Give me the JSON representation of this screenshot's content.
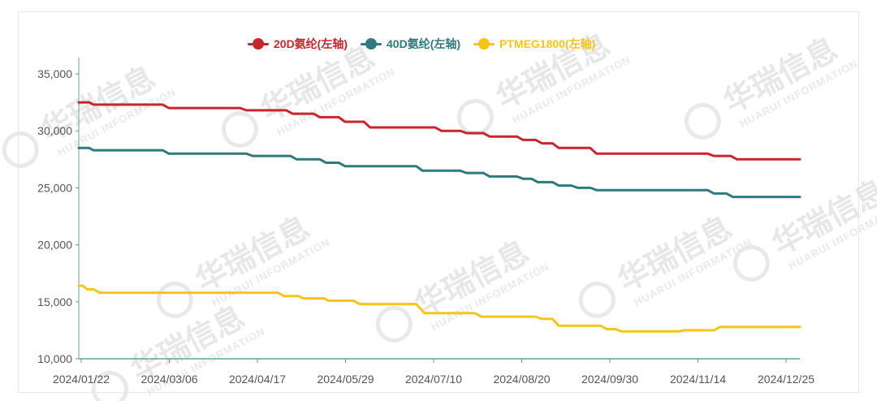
{
  "watermark": {
    "cn": "华瑞信息",
    "en": "HUARUI INFORMATION"
  },
  "legend": [
    {
      "label": "20D氨纶(左轴)",
      "color": "#c8252d"
    },
    {
      "label": "40D氨纶(左轴)",
      "color": "#2e7a7c"
    },
    {
      "label": "PTMEG1800(左轴)",
      "color": "#f5c518"
    }
  ],
  "chart_data": {
    "type": "line",
    "title": "",
    "xlabel": "",
    "ylabel": "",
    "ylim": [
      10000,
      35000
    ],
    "yticks": [
      10000,
      15000,
      20000,
      25000,
      30000,
      35000
    ],
    "ytick_labels": [
      "10,000",
      "15,000",
      "20,000",
      "25,000",
      "30,000",
      "35,000"
    ],
    "xlim": [
      "2024/01/22",
      "2024/12/31"
    ],
    "xtick_labels": [
      "2024/01/22",
      "2024/03/06",
      "2024/04/17",
      "2024/05/29",
      "2024/07/10",
      "2024/08/20",
      "2024/09/30",
      "2024/11/14",
      "2024/12/25"
    ],
    "grid": false,
    "legend_position": "top-center",
    "series": [
      {
        "name": "20D氨纶(左轴)",
        "color": "#c8252d",
        "points": [
          [
            "2024/01/22",
            32500
          ],
          [
            "2024/01/27",
            32500
          ],
          [
            "2024/01/29",
            32300
          ],
          [
            "2024/03/02",
            32300
          ],
          [
            "2024/03/05",
            32000
          ],
          [
            "2024/04/08",
            32000
          ],
          [
            "2024/04/11",
            31800
          ],
          [
            "2024/04/30",
            31800
          ],
          [
            "2024/05/03",
            31500
          ],
          [
            "2024/05/13",
            31500
          ],
          [
            "2024/05/16",
            31200
          ],
          [
            "2024/05/25",
            31200
          ],
          [
            "2024/05/28",
            30800
          ],
          [
            "2024/06/06",
            30800
          ],
          [
            "2024/06/09",
            30300
          ],
          [
            "2024/07/10",
            30300
          ],
          [
            "2024/07/13",
            30000
          ],
          [
            "2024/07/22",
            30000
          ],
          [
            "2024/07/25",
            29800
          ],
          [
            "2024/08/02",
            29800
          ],
          [
            "2024/08/05",
            29500
          ],
          [
            "2024/08/18",
            29500
          ],
          [
            "2024/08/21",
            29200
          ],
          [
            "2024/08/27",
            29200
          ],
          [
            "2024/08/30",
            28900
          ],
          [
            "2024/09/04",
            28900
          ],
          [
            "2024/09/07",
            28500
          ],
          [
            "2024/09/22",
            28500
          ],
          [
            "2024/09/25",
            28000
          ],
          [
            "2024/11/17",
            28000
          ],
          [
            "2024/11/20",
            27800
          ],
          [
            "2024/11/28",
            27800
          ],
          [
            "2024/12/01",
            27500
          ],
          [
            "2024/12/31",
            27500
          ]
        ]
      },
      {
        "name": "40D氨纶(左轴)",
        "color": "#2e7a7c",
        "points": [
          [
            "2024/01/22",
            28500
          ],
          [
            "2024/01/27",
            28500
          ],
          [
            "2024/01/29",
            28300
          ],
          [
            "2024/03/02",
            28300
          ],
          [
            "2024/03/05",
            28000
          ],
          [
            "2024/04/11",
            28000
          ],
          [
            "2024/04/14",
            27800
          ],
          [
            "2024/05/02",
            27800
          ],
          [
            "2024/05/05",
            27500
          ],
          [
            "2024/05/16",
            27500
          ],
          [
            "2024/05/19",
            27200
          ],
          [
            "2024/05/25",
            27200
          ],
          [
            "2024/05/28",
            26900
          ],
          [
            "2024/07/01",
            26900
          ],
          [
            "2024/07/04",
            26500
          ],
          [
            "2024/07/22",
            26500
          ],
          [
            "2024/07/25",
            26300
          ],
          [
            "2024/08/02",
            26300
          ],
          [
            "2024/08/05",
            26000
          ],
          [
            "2024/08/18",
            26000
          ],
          [
            "2024/08/21",
            25800
          ],
          [
            "2024/08/25",
            25800
          ],
          [
            "2024/08/28",
            25500
          ],
          [
            "2024/09/04",
            25500
          ],
          [
            "2024/09/07",
            25200
          ],
          [
            "2024/09/13",
            25200
          ],
          [
            "2024/09/16",
            25000
          ],
          [
            "2024/09/22",
            25000
          ],
          [
            "2024/09/25",
            24800
          ],
          [
            "2024/11/17",
            24800
          ],
          [
            "2024/11/20",
            24500
          ],
          [
            "2024/11/26",
            24500
          ],
          [
            "2024/11/29",
            24200
          ],
          [
            "2024/12/31",
            24200
          ]
        ]
      },
      {
        "name": "PTMEG1800(左轴)",
        "color": "#f5c518",
        "points": [
          [
            "2024/01/22",
            16400
          ],
          [
            "2024/01/24",
            16400
          ],
          [
            "2024/01/26",
            16100
          ],
          [
            "2024/01/29",
            16100
          ],
          [
            "2024/02/01",
            15800
          ],
          [
            "2024/04/26",
            15800
          ],
          [
            "2024/04/29",
            15500
          ],
          [
            "2024/05/06",
            15500
          ],
          [
            "2024/05/08",
            15300
          ],
          [
            "2024/05/18",
            15300
          ],
          [
            "2024/05/20",
            15100
          ],
          [
            "2024/06/01",
            15100
          ],
          [
            "2024/06/04",
            14800
          ],
          [
            "2024/07/01",
            14800
          ],
          [
            "2024/07/05",
            14000
          ],
          [
            "2024/07/29",
            14000
          ],
          [
            "2024/08/01",
            13700
          ],
          [
            "2024/08/27",
            13700
          ],
          [
            "2024/08/30",
            13500
          ],
          [
            "2024/09/04",
            13500
          ],
          [
            "2024/09/07",
            12900
          ],
          [
            "2024/09/27",
            12900
          ],
          [
            "2024/09/30",
            12600
          ],
          [
            "2024/10/04",
            12600
          ],
          [
            "2024/10/07",
            12400
          ],
          [
            "2024/11/03",
            12400
          ],
          [
            "2024/11/06",
            12500
          ],
          [
            "2024/11/20",
            12500
          ],
          [
            "2024/11/23",
            12800
          ],
          [
            "2024/12/31",
            12800
          ]
        ]
      }
    ]
  }
}
